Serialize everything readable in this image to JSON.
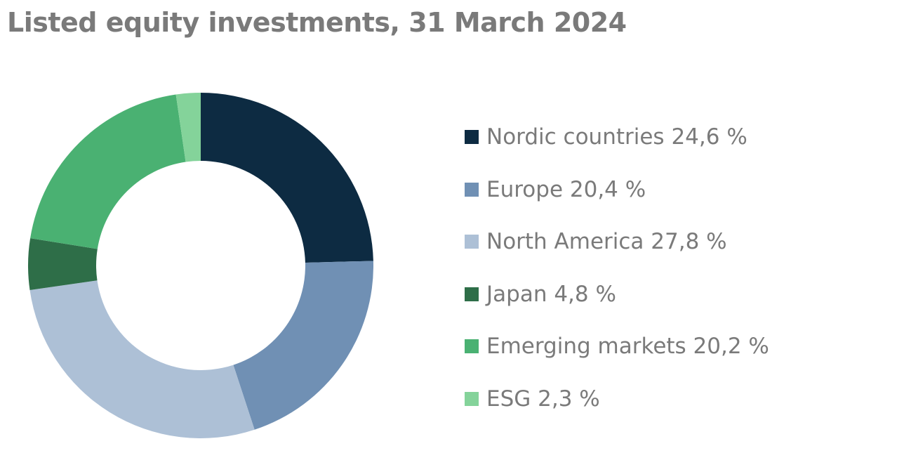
{
  "chart_data": {
    "type": "pie",
    "title": "Listed equity investments, 31 March 2024",
    "donut": true,
    "unit": "%",
    "series": [
      {
        "name": "Nordic countries",
        "value": 24.6,
        "label": "Nordic countries 24,6 %",
        "color": "#0d2b42"
      },
      {
        "name": "Europe",
        "value": 20.4,
        "label": "Europe 20,4 %",
        "color": "#7090b4"
      },
      {
        "name": "North America",
        "value": 27.8,
        "label": "North America 27,8 %",
        "color": "#adc0d6"
      },
      {
        "name": "Japan",
        "value": 4.8,
        "label": "Japan 4,8 %",
        "color": "#2e6e48"
      },
      {
        "name": "Emerging markets",
        "value": 20.2,
        "label": "Emerging markets 20,2 %",
        "color": "#4ab172"
      },
      {
        "name": "ESG",
        "value": 2.3,
        "label": "ESG 2,3 %",
        "color": "#84d39a"
      }
    ],
    "legend_position": "right"
  }
}
